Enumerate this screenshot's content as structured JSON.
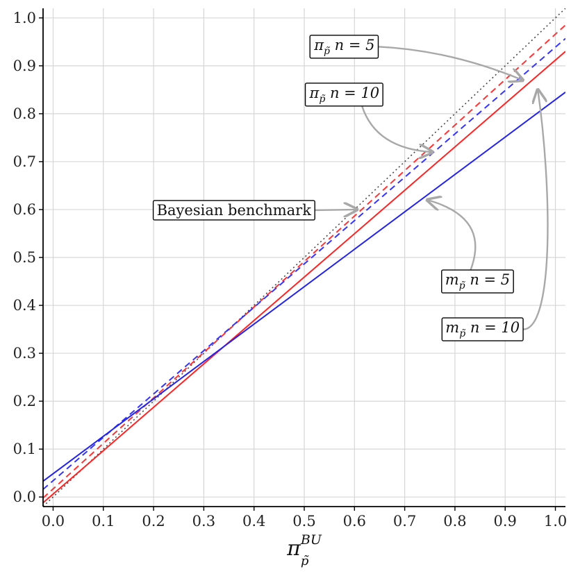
{
  "chart_data": {
    "type": "line",
    "title": "",
    "xlabel": {
      "base": "π",
      "superscript": "BU",
      "subscript": "p̃"
    },
    "ylabel": "",
    "xlim": [
      -0.02,
      1.02
    ],
    "ylim": [
      -0.02,
      1.02
    ],
    "grid": true,
    "x_ticks": [
      "0.0",
      "0.1",
      "0.2",
      "0.3",
      "0.4",
      "0.5",
      "0.6",
      "0.7",
      "0.8",
      "0.9",
      "1.0"
    ],
    "y_ticks": [
      "0.0",
      "0.1",
      "0.2",
      "0.3",
      "0.4",
      "0.5",
      "0.6",
      "0.7",
      "0.8",
      "0.9",
      "1.0"
    ],
    "series": [
      {
        "key": "benchmark",
        "color": "#444444",
        "dash": "dotted",
        "x": [
          -0.02,
          1.02
        ],
        "y": [
          -0.02,
          1.02
        ]
      },
      {
        "key": "pi_n5",
        "color": "#ff3333",
        "dash": "dashed",
        "x": [
          -0.02,
          1.02
        ],
        "y": [
          -0.002,
          0.985
        ]
      },
      {
        "key": "pi_n10",
        "color": "#3333ff",
        "dash": "dashed",
        "x": [
          -0.02,
          1.02
        ],
        "y": [
          0.016,
          0.957
        ]
      },
      {
        "key": "m_n5",
        "color": "#ff2222",
        "dash": "solid",
        "x": [
          -0.02,
          1.02
        ],
        "y": [
          -0.012,
          0.93
        ]
      },
      {
        "key": "m_n10",
        "color": "#2222ee",
        "dash": "solid",
        "x": [
          -0.02,
          1.02
        ],
        "y": [
          0.033,
          0.845
        ]
      }
    ],
    "annotations": [
      {
        "key": "pi5",
        "base": "π",
        "sub": "p̃",
        "rest": " n = 5",
        "box_at": [
          0.58,
          0.945
        ],
        "arrow_to": [
          0.935,
          0.87
        ]
      },
      {
        "key": "pi10",
        "base": "π",
        "sub": "p̃",
        "rest": " n = 10",
        "box_at": [
          0.58,
          0.845
        ],
        "arrow_to": [
          0.755,
          0.72
        ]
      },
      {
        "key": "bench",
        "text": "Bayesian benchmark",
        "box_at": [
          0.36,
          0.6
        ],
        "arrow_to": [
          0.605,
          0.6
        ]
      },
      {
        "key": "m5",
        "base": "m",
        "sub": "p̃",
        "rest": " n = 5",
        "box_at": [
          0.845,
          0.455
        ],
        "arrow_to": [
          0.745,
          0.62
        ]
      },
      {
        "key": "m10",
        "base": "m",
        "sub": "p̃",
        "rest": " n = 10",
        "box_at": [
          0.855,
          0.355
        ],
        "arrow_to": [
          0.965,
          0.85
        ]
      }
    ],
    "colors": {
      "grid": "#d6d6d6",
      "axis": "#000000",
      "arrow": "#a8a8a8",
      "box_border": "#000000"
    }
  }
}
